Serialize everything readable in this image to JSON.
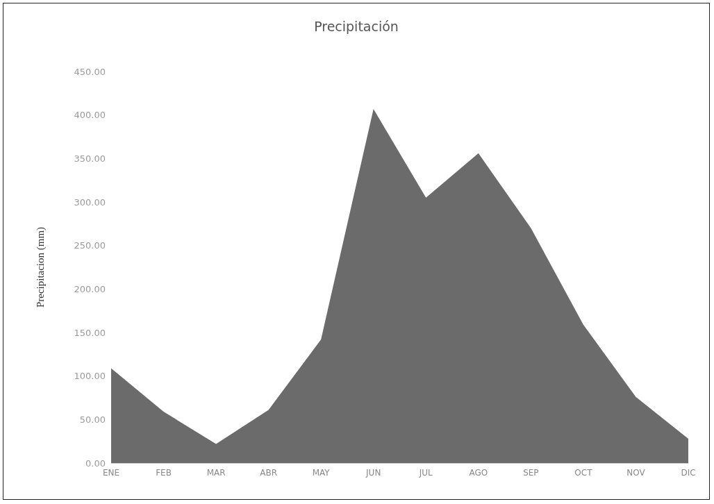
{
  "chart_data": {
    "type": "area",
    "title": "Precipitación",
    "ylabel": "Precipitacion (mm)",
    "categories": [
      "ENE",
      "FEB",
      "MAR",
      "ABR",
      "MAY",
      "JUN",
      "JUL",
      "AGO",
      "SEP",
      "OCT",
      "NOV",
      "DIC"
    ],
    "values": [
      109,
      59,
      22,
      61,
      142,
      407,
      305,
      356,
      270,
      159,
      76,
      28
    ],
    "color": "#6b6b6b",
    "ylim": [
      0,
      450
    ],
    "yticks": [
      {
        "value": 0,
        "label": "0.00"
      },
      {
        "value": 50,
        "label": "50.00"
      },
      {
        "value": 100,
        "label": "100.00"
      },
      {
        "value": 150,
        "label": "150.00"
      },
      {
        "value": 200,
        "label": "200.00"
      },
      {
        "value": 250,
        "label": "250.00"
      },
      {
        "value": 300,
        "label": "300.00"
      },
      {
        "value": 350,
        "label": "350.00"
      },
      {
        "value": 400,
        "label": "400.00"
      },
      {
        "value": 450,
        "label": "450.00"
      }
    ],
    "grid": false
  }
}
